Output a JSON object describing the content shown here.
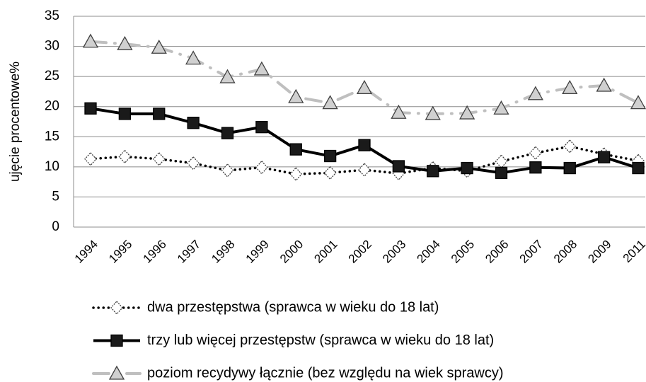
{
  "chart_data": {
    "type": "line",
    "y_label": "ujęcie procentowe%",
    "categories": [
      "1994",
      "1995",
      "1996",
      "1997",
      "1998",
      "1999",
      "2000",
      "2001",
      "2002",
      "2003",
      "2004",
      "2005",
      "2006",
      "2007",
      "2008",
      "2009",
      "2011"
    ],
    "series": [
      {
        "name": "dwa przestępstwa (sprawca w wieku do 18 lat)",
        "color": "#000000",
        "line_style": "dotted",
        "marker": "diamond",
        "marker_fill": "#ffffff",
        "values": [
          11.3,
          11.7,
          11.3,
          10.6,
          9.4,
          9.9,
          8.8,
          9.0,
          9.5,
          8.9,
          9.8,
          9.3,
          10.9,
          12.3,
          13.4,
          12.1,
          11.0
        ]
      },
      {
        "name": "trzy lub więcej przestępstw (sprawca w wieku do 18 lat)",
        "color": "#000000",
        "line_style": "solid",
        "marker": "square",
        "marker_fill": "#1a1a1a",
        "values": [
          19.7,
          18.8,
          18.8,
          17.3,
          15.6,
          16.6,
          12.9,
          11.8,
          13.6,
          10.1,
          9.3,
          9.8,
          9.0,
          9.9,
          9.8,
          11.6,
          9.8
        ]
      },
      {
        "name": "poziom recydywy łącznie (bez względu na wiek sprawcy)",
        "color": "#bfbfbf",
        "line_style": "dashdot",
        "marker": "triangle",
        "marker_fill": "#d0d0d0",
        "values": [
          30.8,
          30.4,
          29.8,
          28.0,
          24.9,
          26.2,
          21.6,
          20.6,
          23.1,
          19.0,
          18.8,
          18.9,
          19.7,
          22.1,
          23.1,
          23.5,
          20.6
        ]
      }
    ],
    "ylim": [
      0,
      35
    ],
    "yticks": [
      0,
      5,
      10,
      15,
      20,
      25,
      30,
      35
    ],
    "grid": true,
    "legend": "bottom"
  }
}
